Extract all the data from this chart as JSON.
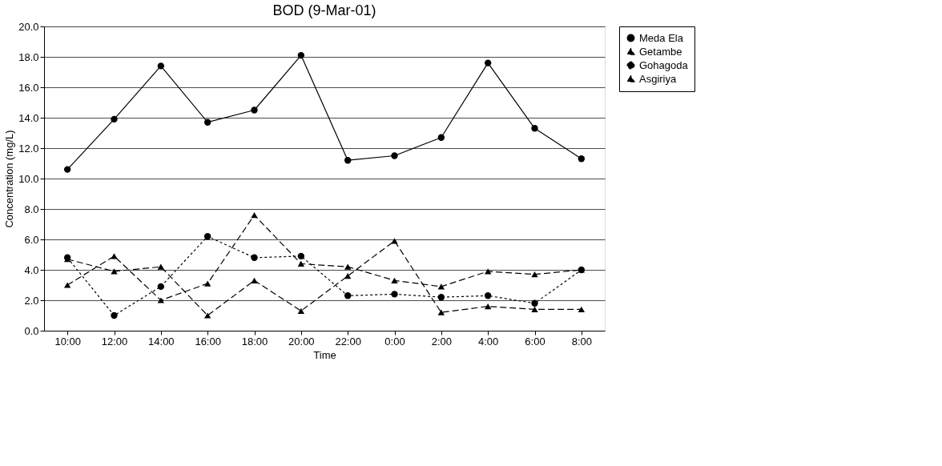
{
  "chart_data": {
    "type": "line",
    "title": "BOD (9-Mar-01)",
    "xlabel": "Time",
    "ylabel": "Concentration (mg/L)",
    "categories": [
      "10:00",
      "12:00",
      "14:00",
      "16:00",
      "18:00",
      "20:00",
      "22:00",
      "0:00",
      "2:00",
      "4:00",
      "6:00",
      "8:00"
    ],
    "series": [
      {
        "name": "Meda Ela",
        "color": "#000000",
        "marker": "circle",
        "line_style": "solid",
        "values": [
          10.6,
          13.9,
          17.4,
          13.7,
          14.5,
          18.1,
          11.2,
          11.5,
          12.7,
          17.6,
          13.3,
          11.3
        ]
      },
      {
        "name": "Getambe",
        "color": "#000000",
        "marker": "triangle",
        "line_style": "dashed",
        "values": [
          3.0,
          4.9,
          2.0,
          3.1,
          7.6,
          4.4,
          4.2,
          3.3,
          2.9,
          3.9,
          3.7,
          4.0
        ]
      },
      {
        "name": "Gohagoda",
        "color": "#000000",
        "marker": "circle",
        "line_style": "dotted",
        "values": [
          4.8,
          1.0,
          2.9,
          6.2,
          4.8,
          4.9,
          2.3,
          2.4,
          2.2,
          2.3,
          1.8,
          4.0
        ]
      },
      {
        "name": "Asgiriya",
        "color": "#000000",
        "marker": "triangle",
        "line_style": "dashed",
        "values": [
          4.7,
          3.9,
          4.2,
          1.0,
          3.3,
          1.3,
          3.6,
          5.9,
          1.2,
          1.6,
          1.4,
          1.4
        ]
      }
    ],
    "ylim": [
      0,
      20
    ],
    "yticks": [
      {
        "value": 0,
        "label": "0.0"
      },
      {
        "value": 2,
        "label": "2.0"
      },
      {
        "value": 4,
        "label": "4.0"
      },
      {
        "value": 6,
        "label": "6.0"
      },
      {
        "value": 8,
        "label": "8.0"
      },
      {
        "value": 10,
        "label": "10.0"
      },
      {
        "value": 12,
        "label": "12.0"
      },
      {
        "value": 14,
        "label": "14.0"
      },
      {
        "value": 16,
        "label": "16.0"
      },
      {
        "value": 18,
        "label": "18.0"
      },
      {
        "value": 20,
        "label": "20.0"
      }
    ],
    "grid": "y",
    "legend": "right"
  }
}
